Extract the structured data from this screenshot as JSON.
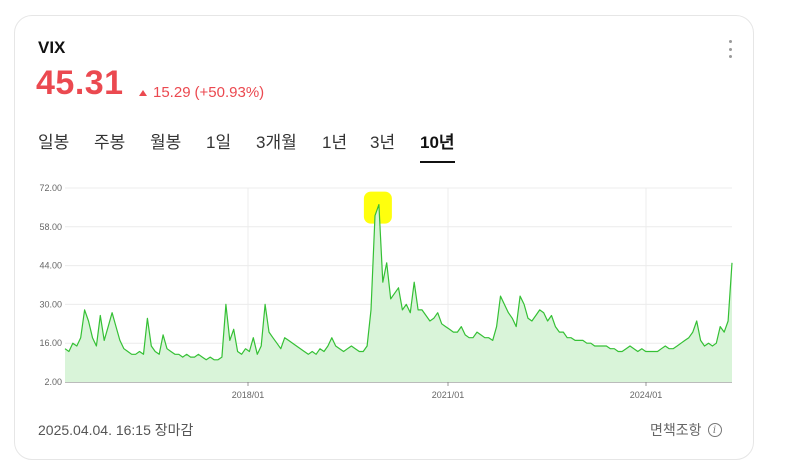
{
  "header": {
    "ticker": "VIX",
    "price": "45.31",
    "change": "15.29",
    "change_pct": "(+50.93%)"
  },
  "tabs": [
    {
      "label": "일봉",
      "active": false
    },
    {
      "label": "주봉",
      "active": false
    },
    {
      "label": "월봉",
      "active": false
    },
    {
      "label": "1일",
      "active": false
    },
    {
      "label": "3개월",
      "active": false
    },
    {
      "label": "1년",
      "active": false
    },
    {
      "label": "3년",
      "active": false
    },
    {
      "label": "10년",
      "active": true
    }
  ],
  "footer": {
    "timestamp": "2025.04.04. 16:15 장마감",
    "disclaimer": "면책조항"
  },
  "colors": {
    "accent": "#eb4950",
    "line": "#35c035",
    "fill": "#d9f4d9",
    "highlight": "#ffff00"
  },
  "chart_data": {
    "type": "area",
    "title": "",
    "xlabel": "",
    "ylabel": "",
    "ylim": [
      2,
      72
    ],
    "yticks": [
      "72.00",
      "58.00",
      "44.00",
      "30.00",
      "16.00",
      "2.00"
    ],
    "xticks": [
      "2018/01",
      "2021/01",
      "2024/01"
    ],
    "grid": true,
    "series": [
      {
        "values": [
          14,
          13,
          16,
          15,
          18,
          28,
          24,
          18,
          15,
          26,
          17,
          22,
          27,
          22,
          17,
          14,
          13,
          12,
          12,
          13,
          12,
          25,
          15,
          13,
          12,
          19,
          14,
          13,
          12,
          12,
          11,
          12,
          11,
          11,
          12,
          11,
          10,
          11,
          10,
          10,
          11,
          30,
          17,
          21,
          13,
          12,
          14,
          13,
          18,
          12,
          15,
          30,
          20,
          18,
          16,
          14,
          18,
          17,
          16,
          15,
          14,
          13,
          12,
          13,
          12,
          14,
          13,
          15,
          18,
          15,
          14,
          13,
          14,
          15,
          14,
          13,
          13,
          15,
          28,
          62,
          66,
          38,
          45,
          32,
          34,
          36,
          28,
          30,
          27,
          38,
          28,
          28,
          26,
          24,
          25,
          27,
          23,
          22,
          21,
          20,
          20,
          22,
          19,
          18,
          18,
          20,
          19,
          18,
          18,
          17,
          22,
          33,
          30,
          27,
          25,
          22,
          33,
          30,
          25,
          24,
          26,
          28,
          27,
          24,
          26,
          22,
          20,
          20,
          18,
          18,
          17,
          17,
          17,
          16,
          16,
          15,
          15,
          15,
          15,
          14,
          14,
          13,
          13,
          14,
          15,
          14,
          13,
          14,
          13,
          13,
          13,
          13,
          14,
          15,
          14,
          14,
          15,
          16,
          17,
          18,
          20,
          24,
          17,
          15,
          16,
          15,
          16,
          22,
          20,
          24,
          45
        ]
      }
    ]
  }
}
